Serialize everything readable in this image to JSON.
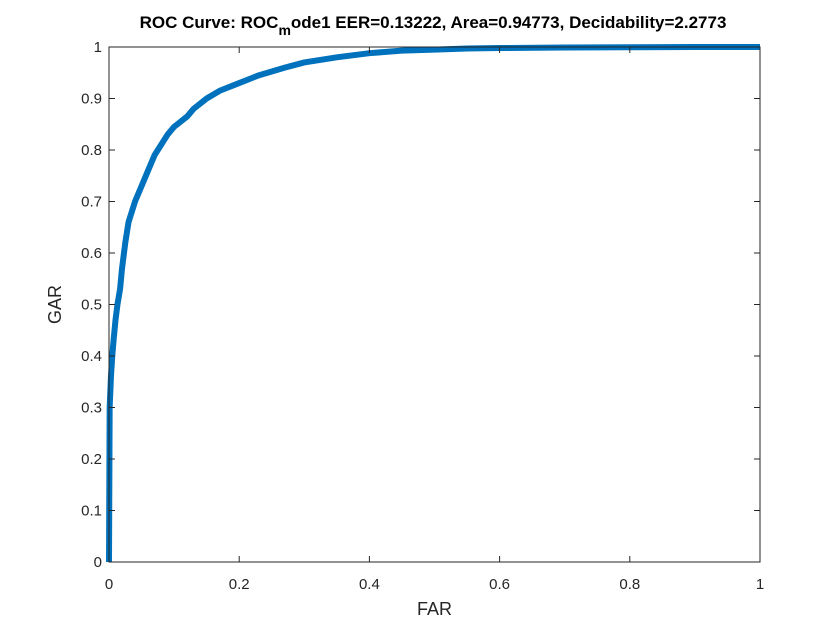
{
  "chart_data": {
    "type": "line",
    "title": {
      "prefix": "ROC Curve: ROC",
      "subscript": "m",
      "suffix": "ode1   EER=0.13222,    Area=0.94773,    Decidability=2.2773"
    },
    "xlabel": "FAR",
    "ylabel": "GAR",
    "xlim": [
      0,
      1
    ],
    "ylim": [
      0,
      1
    ],
    "xticks": [
      0,
      0.2,
      0.4,
      0.6,
      0.8,
      1
    ],
    "xtick_labels": [
      "0",
      "0.2",
      "0.4",
      "0.6",
      "0.8",
      "1"
    ],
    "yticks": [
      0,
      0.1,
      0.2,
      0.3,
      0.4,
      0.5,
      0.6,
      0.7,
      0.8,
      0.9,
      1
    ],
    "ytick_labels": [
      "0",
      "0.1",
      "0.2",
      "0.3",
      "0.4",
      "0.5",
      "0.6",
      "0.7",
      "0.8",
      "0.9",
      "1"
    ],
    "grid": false,
    "line_color": "#0072BD",
    "series": [
      {
        "x": [
          0,
          0.001,
          0.002,
          0.003,
          0.005,
          0.007,
          0.01,
          0.013,
          0.017,
          0.02,
          0.025,
          0.03,
          0.035,
          0.04,
          0.05,
          0.06,
          0.07,
          0.08,
          0.09,
          0.1,
          0.11,
          0.12,
          0.13,
          0.15,
          0.17,
          0.2,
          0.23,
          0.27,
          0.3,
          0.35,
          0.4,
          0.45,
          0.5,
          0.55,
          0.6,
          0.7,
          0.8,
          0.9,
          1.0
        ],
        "y": [
          0,
          0.3,
          0.33,
          0.36,
          0.4,
          0.43,
          0.47,
          0.5,
          0.53,
          0.57,
          0.62,
          0.66,
          0.68,
          0.7,
          0.73,
          0.76,
          0.79,
          0.81,
          0.83,
          0.845,
          0.855,
          0.865,
          0.88,
          0.9,
          0.915,
          0.93,
          0.945,
          0.96,
          0.97,
          0.98,
          0.988,
          0.993,
          0.995,
          0.997,
          0.998,
          0.999,
          0.9995,
          1.0,
          1.0
        ]
      }
    ]
  }
}
